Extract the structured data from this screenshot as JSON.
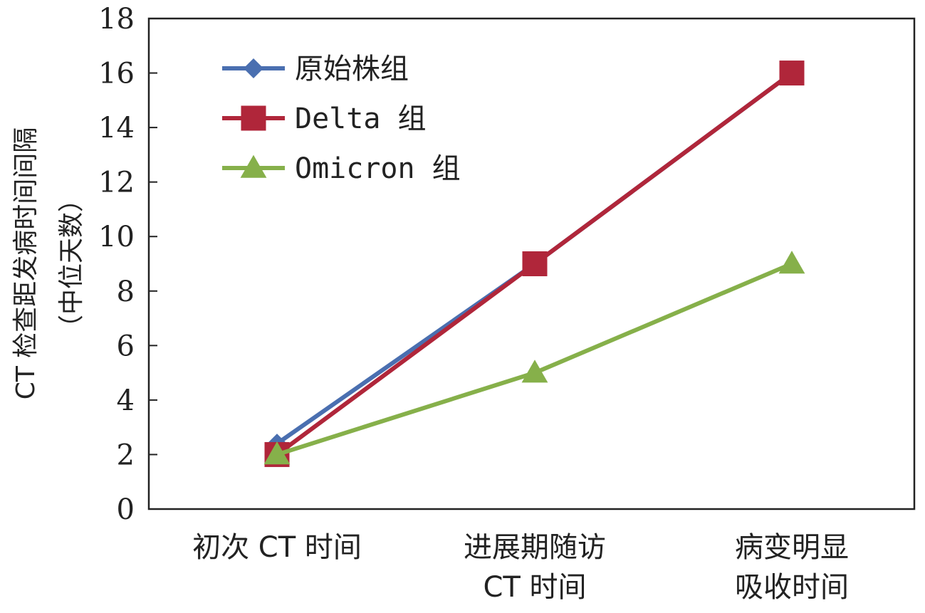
{
  "chart_data": {
    "type": "line",
    "categories": [
      [
        "初次 CT 时间"
      ],
      [
        "进展期随访",
        "CT 时间"
      ],
      [
        "病变明显",
        "吸收时间"
      ]
    ],
    "series": [
      {
        "name": "原始株组",
        "values": [
          2.4,
          9,
          16
        ],
        "color": "#4a6fb0",
        "marker": "diamond"
      },
      {
        "name": "Delta 组",
        "values": [
          2,
          9,
          16
        ],
        "color": "#b0263a",
        "marker": "square"
      },
      {
        "name": "Omicron 组",
        "values": [
          2,
          5,
          9
        ],
        "color": "#86b04a",
        "marker": "triangle"
      }
    ],
    "ylabel": [
      "CT 检查距发病时间间隔",
      "（中位天数）"
    ],
    "ylim": [
      0,
      18
    ],
    "yticks": [
      0,
      2,
      4,
      6,
      8,
      10,
      12,
      14,
      16,
      18
    ],
    "grid": false,
    "legend_position": "top-left"
  }
}
